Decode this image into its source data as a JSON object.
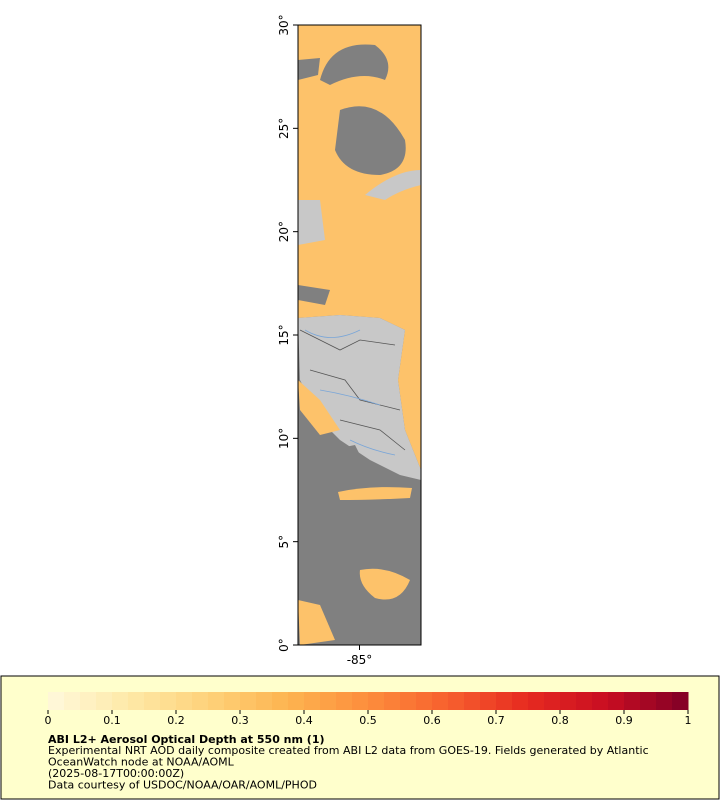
{
  "map": {
    "ylim": [
      0,
      30
    ],
    "yticks": [
      {
        "value": 0,
        "label": "0°"
      },
      {
        "value": 5,
        "label": "5°"
      },
      {
        "value": 10,
        "label": "10°"
      },
      {
        "value": 15,
        "label": "15°"
      },
      {
        "value": 20,
        "label": "20°"
      },
      {
        "value": 25,
        "label": "25°"
      },
      {
        "value": 30,
        "label": "30°"
      }
    ],
    "xlim": [
      -88,
      -82
    ],
    "xticks": [
      {
        "value": -85,
        "label": "-85°"
      }
    ]
  },
  "colorbar": {
    "lim": [
      0,
      1
    ],
    "ticks": [
      0,
      0.1,
      0.2,
      0.3,
      0.4,
      0.5,
      0.6,
      0.7,
      0.8,
      0.9,
      1
    ],
    "colors": [
      "#fff8dc",
      "#fee9a8",
      "#fed27a",
      "#fdb450",
      "#fd8d3c",
      "#f7602e",
      "#e62a20",
      "#c80d22",
      "#800026"
    ]
  },
  "legend": {
    "title": "ABI L2+ Aerosol Optical Depth at 550 nm (1)",
    "lines": [
      "Experimental NRT AOD daily composite created from ABI L2 data from GOES-19. Fields generated by Atlantic",
      "OceanWatch node at NOAA/AOML",
      "(2025-08-17T00:00:00Z)",
      "Data courtesy of USDOC/NOAA/OAR/AOML/PHOD"
    ]
  }
}
